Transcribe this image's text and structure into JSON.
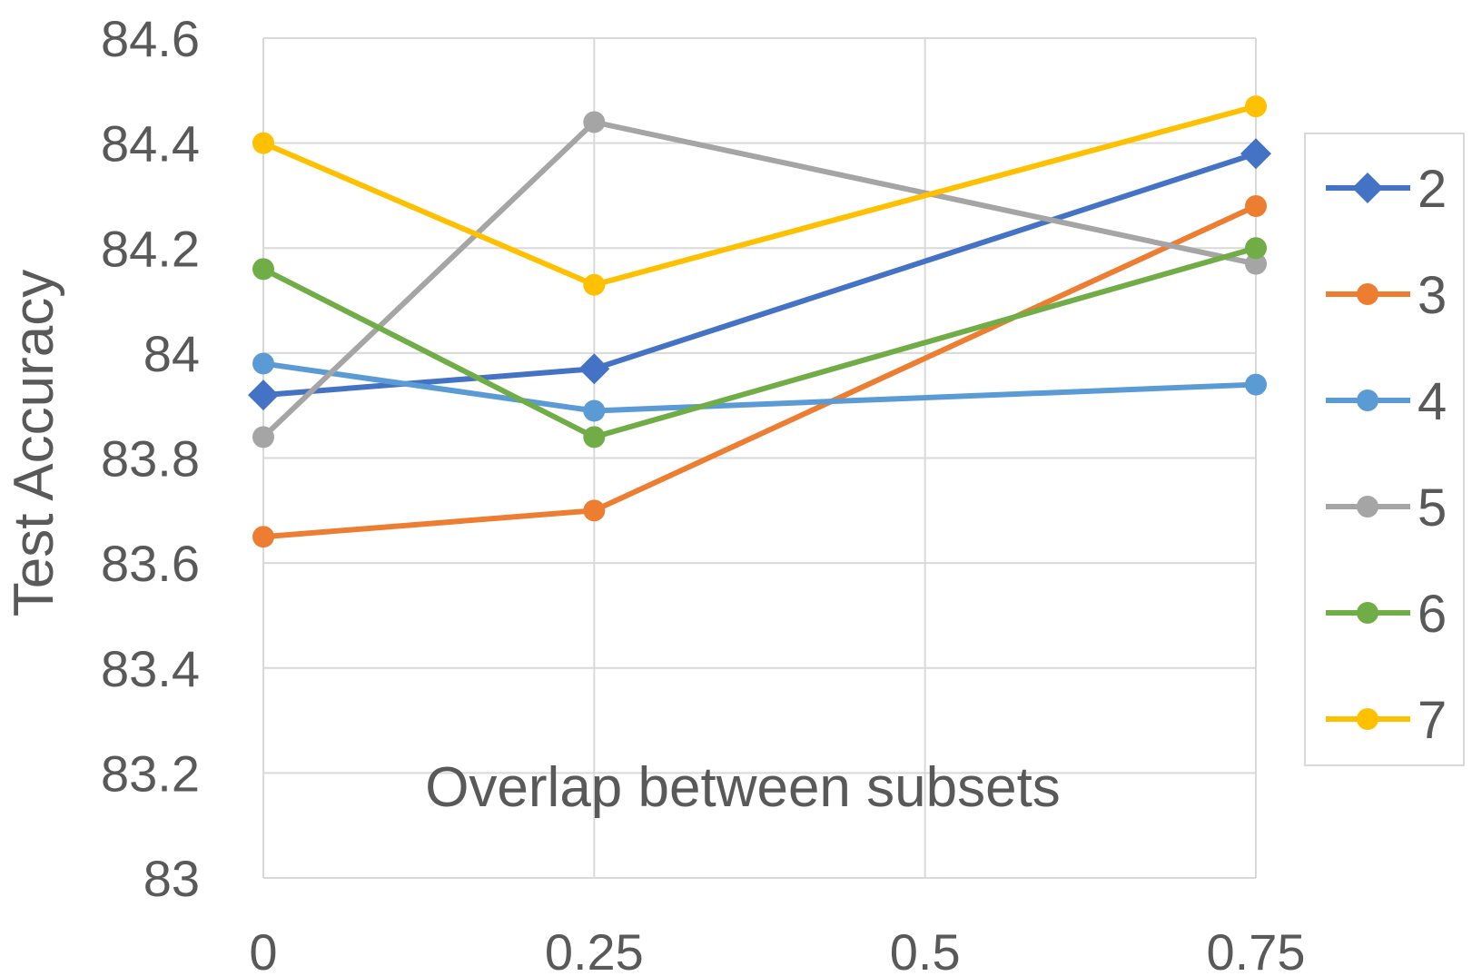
{
  "chart_data": {
    "type": "line",
    "title": "",
    "xlabel": "Overlap between subsets",
    "ylabel": "Test Accuracy",
    "x": [
      0,
      0.25,
      0.5,
      0.75
    ],
    "x_tick_labels": [
      "0",
      "0.25",
      "0.5",
      "0.75"
    ],
    "ylim": [
      83,
      84.6
    ],
    "y_ticks": [
      83,
      83.2,
      83.4,
      83.6,
      83.8,
      84,
      84.2,
      84.4,
      84.6
    ],
    "y_tick_labels": [
      "83",
      "83.2",
      "83.4",
      "83.6",
      "83.8",
      "84",
      "84.2",
      "84.4",
      "84.6"
    ],
    "grid": true,
    "legend_position": "right",
    "series": [
      {
        "name": "2",
        "color": "#4472C4",
        "marker": "diamond",
        "x": [
          0,
          0.25,
          0.75
        ],
        "values": [
          83.92,
          83.97,
          84.38
        ]
      },
      {
        "name": "3",
        "color": "#ED7D31",
        "marker": "circle",
        "x": [
          0,
          0.25,
          0.75
        ],
        "values": [
          83.65,
          83.7,
          84.28
        ]
      },
      {
        "name": "4",
        "color": "#5B9BD5",
        "marker": "circle",
        "x": [
          0,
          0.25,
          0.75
        ],
        "values": [
          83.98,
          83.89,
          83.94
        ]
      },
      {
        "name": "5",
        "color": "#A5A5A5",
        "marker": "circle",
        "x": [
          0,
          0.25,
          0.75
        ],
        "values": [
          83.84,
          84.44,
          84.17
        ]
      },
      {
        "name": "6",
        "color": "#70AD47",
        "marker": "circle",
        "x": [
          0,
          0.25,
          0.75
        ],
        "values": [
          84.16,
          83.84,
          84.2
        ]
      },
      {
        "name": "7",
        "color": "#FFC000",
        "marker": "circle",
        "x": [
          0,
          0.25,
          0.75
        ],
        "values": [
          84.4,
          84.13,
          84.47
        ]
      }
    ]
  }
}
